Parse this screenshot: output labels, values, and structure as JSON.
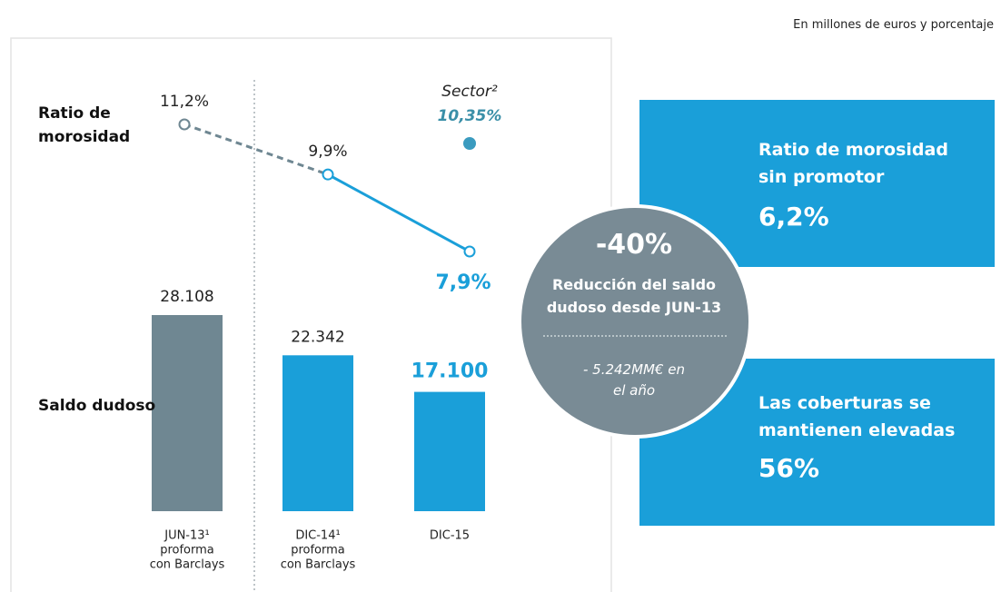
{
  "note": "En millones de euros y porcentaje",
  "row_labels": [
    "Ratio de morosidad",
    "Saldo dudoso"
  ],
  "chart_data": [
    {
      "type": "bar",
      "categories": [
        [
          "JUN-13¹",
          "proforma",
          "con Barclays"
        ],
        [
          "DIC-14¹",
          "proforma",
          "con Barclays"
        ],
        [
          "DIC-15"
        ]
      ],
      "values": [
        28108,
        22342,
        17100
      ],
      "value_labels": [
        "28.108",
        "22.342",
        "17.100"
      ],
      "colors": [
        "#6f8792",
        "#1a9fd9",
        "#1a9fd9"
      ]
    },
    {
      "type": "line",
      "series": [
        {
          "color": "#1a9fd9",
          "values": [
            11.2,
            9.9,
            7.9
          ],
          "value_labels": [
            "11,2%",
            "9,9%",
            "7,9%"
          ]
        },
        {
          "name": "Sector²",
          "color": "#3a9bbf",
          "values": [
            null,
            null,
            10.35
          ],
          "value_labels": [
            null,
            null,
            "10,35%"
          ]
        }
      ]
    }
  ],
  "highlight": {
    "value": "-40%",
    "text": "Reducción del saldo dudoso desde JUN-13",
    "detail": "- 5.242MM€ en el año"
  },
  "boxes": [
    {
      "title": "Ratio de morosidad sin promotor",
      "value": "6,2%"
    },
    {
      "title": "Las coberturas se mantienen elevadas",
      "value": "56%"
    }
  ]
}
